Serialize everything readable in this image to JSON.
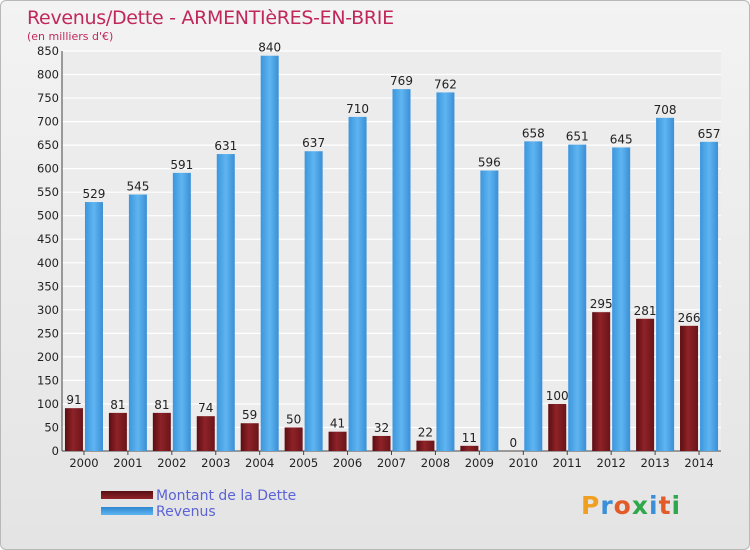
{
  "chart_data": {
    "type": "bar",
    "title": "Revenus/Dette - ARMENTIèRES-EN-BRIE",
    "subtitle": "(en milliers d'€)",
    "categories": [
      "2000",
      "2001",
      "2002",
      "2003",
      "2004",
      "2005",
      "2006",
      "2007",
      "2008",
      "2009",
      "2010",
      "2011",
      "2012",
      "2013",
      "2014"
    ],
    "series": [
      {
        "name": "Montant de la Dette",
        "color": "#7a1a1f",
        "values": [
          91,
          81,
          81,
          74,
          59,
          50,
          41,
          32,
          22,
          11,
          0,
          100,
          295,
          281,
          266
        ]
      },
      {
        "name": "Revenus",
        "color": "#4aa6e8",
        "values": [
          529,
          545,
          591,
          631,
          840,
          637,
          710,
          769,
          762,
          596,
          658,
          651,
          645,
          708,
          657
        ]
      }
    ],
    "ylim": [
      0,
      850
    ],
    "yticks": [
      0,
      50,
      100,
      150,
      200,
      250,
      300,
      350,
      400,
      450,
      500,
      550,
      600,
      650,
      700,
      750,
      800,
      850
    ],
    "grid": true,
    "legend_position": "bottom-left"
  },
  "logo": {
    "text": "Proxiti",
    "colors": [
      "#f0a020",
      "#3b8fd8",
      "#e25c2a",
      "#2ea84a",
      "#3b8fd8",
      "#e25c2a",
      "#2ea84a"
    ]
  }
}
